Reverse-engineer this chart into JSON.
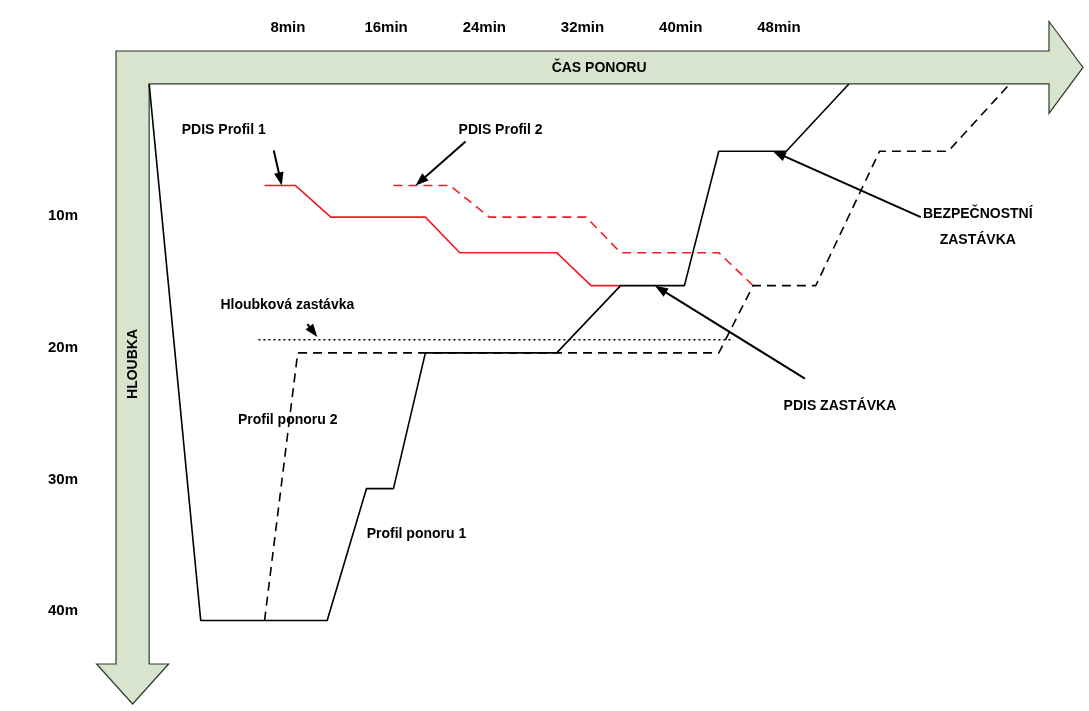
{
  "chart_data": {
    "type": "line",
    "xlabel": "ČAS PONORU",
    "ylabel": "HLOUBKA",
    "xlim": [
      -6,
      70
    ],
    "ylim": [
      44,
      -2.5
    ],
    "xticks": [
      {
        "value": 8,
        "label": "8min"
      },
      {
        "value": 16,
        "label": "16min"
      },
      {
        "value": 24,
        "label": "24min"
      },
      {
        "value": 32,
        "label": "32min"
      },
      {
        "value": 40,
        "label": "40min"
      },
      {
        "value": 48,
        "label": "48min"
      }
    ],
    "yticks": [
      {
        "value": 10,
        "label": "10m"
      },
      {
        "value": 20,
        "label": "20m"
      },
      {
        "value": 30,
        "label": "30m"
      },
      {
        "value": 40,
        "label": "40m"
      }
    ],
    "grid": false,
    "legend": false,
    "marker": "none",
    "series": [
      {
        "name": "Profil ponoru 1",
        "color": "#000000",
        "line_style": "solid",
        "x": [
          -3.3,
          0.9,
          11.2,
          14.4,
          16.6,
          19.2,
          29.9,
          35.1,
          40.3,
          43.1,
          48.6,
          53.7
        ],
        "values": [
          0,
          40.7,
          40.7,
          30.7,
          30.7,
          20.4,
          20.4,
          15.3,
          15.3,
          5.1,
          5.1,
          0
        ]
      },
      {
        "name": "Profil ponoru 2",
        "color": "#000000",
        "line_style": "dashed",
        "x": [
          6.1,
          8.8,
          43.1,
          45.9,
          51.0,
          56.2,
          61.8,
          66.8
        ],
        "values": [
          40.7,
          20.4,
          20.4,
          15.3,
          15.3,
          5.1,
          5.1,
          0
        ]
      },
      {
        "color": "#ee1c25",
        "line_style": "solid",
        "x": [
          6.1,
          8.6,
          11.5,
          19.2,
          22.0,
          29.9,
          32.7,
          35.1
        ],
        "values": [
          7.7,
          7.7,
          10.1,
          10.1,
          12.8,
          12.8,
          15.3,
          15.3
        ]
      },
      {
        "color": "#ee1c25",
        "line_style": "dashed",
        "x": [
          16.6,
          21.2,
          24.4,
          32.3,
          35.1,
          43.1,
          45.9
        ],
        "values": [
          7.7,
          7.7,
          10.1,
          10.1,
          12.8,
          12.8,
          15.3
        ]
      },
      {
        "color": "#000000",
        "line_style": "dotted",
        "x": [
          5.6,
          44.3
        ],
        "values": [
          19.4,
          19.4
        ]
      }
    ],
    "annotations": [
      {
        "text": "PDIS Profil 1",
        "x": 7.5,
        "y": 7.7
      },
      {
        "text": "PDIS Profil 2",
        "x": 18.4,
        "y": 7.7
      },
      {
        "text": "Hloubková zastávka",
        "x": 10.4,
        "y": 19.2
      },
      {
        "text": "PDIS ZASTÁVKA",
        "x": 37.9,
        "y": 15.3
      },
      {
        "text": "BEZPEČNOSTNÍ ZASTÁVKA",
        "x": 47.5,
        "y": 5.1
      }
    ]
  }
}
